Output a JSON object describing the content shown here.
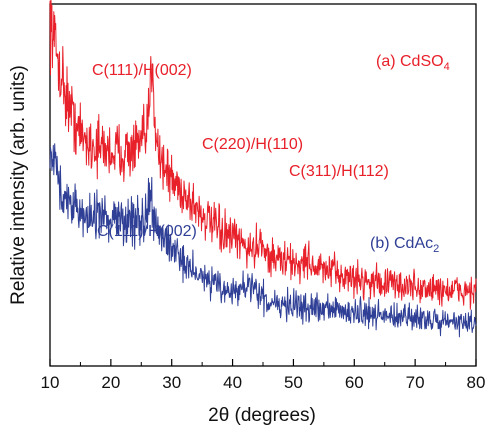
{
  "chart_data": {
    "type": "line",
    "title": "",
    "xlabel": "2θ (degrees)",
    "ylabel": "Relative intensity (arb. units)",
    "xlim": [
      10,
      80
    ],
    "yticks_labeled": false,
    "grid": false,
    "x_ticks": [
      "10",
      "20",
      "30",
      "40",
      "50",
      "60",
      "70",
      "80"
    ],
    "series": [
      {
        "name": "(a) CdSO4",
        "label_main": "(a) CdSO",
        "label_sub": "4",
        "color": "#e8202a",
        "x": [
          10,
          11,
          12,
          13,
          14,
          15,
          16,
          17,
          18,
          19,
          20,
          21,
          22,
          23,
          24,
          25,
          25.5,
          26,
          26.3,
          26.6,
          26.8,
          27.0,
          27.2,
          27.5,
          28,
          29,
          30,
          31,
          32,
          33,
          34,
          35,
          36,
          37,
          38,
          39,
          40,
          41,
          42,
          43,
          43.8,
          44.3,
          44.6,
          44.9,
          45.3,
          46,
          47,
          48,
          49,
          50,
          51,
          51.8,
          52.3,
          52.7,
          53.2,
          54,
          55,
          56,
          57,
          58,
          59,
          60,
          62,
          64,
          66,
          68,
          70,
          72,
          74,
          76,
          78,
          80
        ],
        "y": [
          100,
          90,
          82,
          75,
          70,
          66,
          64,
          63,
          62,
          62,
          61,
          61,
          61,
          61,
          62,
          63,
          64,
          67,
          73,
          83,
          88,
          82,
          72,
          66,
          60,
          56,
          53,
          51,
          49,
          47,
          45,
          43,
          41,
          39.5,
          38,
          37,
          36,
          35,
          34,
          33,
          33,
          35,
          38,
          35,
          32,
          31,
          30.5,
          30,
          29.5,
          29,
          28.5,
          29,
          31,
          29.5,
          28,
          27.5,
          27,
          26.5,
          26,
          25.5,
          25,
          24.5,
          24,
          23.5,
          23,
          22.5,
          22,
          21.5,
          21.5,
          21,
          21,
          21
        ]
      },
      {
        "name": "(b) CdAc2",
        "label_main": "(b) CdAc",
        "label_sub": "2",
        "color": "#2f3f96",
        "x": [
          10,
          11,
          12,
          13,
          14,
          15,
          16,
          17,
          18,
          19,
          20,
          21,
          22,
          23,
          24,
          25,
          25.5,
          26,
          26.3,
          26.6,
          26.8,
          27.0,
          27.3,
          27.8,
          28.5,
          29,
          30,
          31,
          32,
          33,
          34,
          35,
          36,
          37,
          38,
          39,
          40,
          41,
          42,
          43,
          44,
          45,
          46,
          47,
          48,
          49,
          50,
          52,
          54,
          56,
          58,
          60,
          62,
          64,
          66,
          68,
          70,
          72,
          74,
          76,
          78,
          80
        ],
        "y": [
          63,
          56,
          51,
          47,
          45,
          43,
          42,
          42,
          41.5,
          41.5,
          41,
          41,
          41,
          41,
          41,
          41,
          41.5,
          43,
          46,
          47.5,
          45.5,
          42,
          39,
          38,
          37,
          36,
          34,
          32,
          30,
          28,
          26.5,
          25,
          24,
          23,
          22,
          21,
          21,
          21.5,
          21.5,
          21,
          20,
          19,
          18.5,
          18,
          17.5,
          17,
          17,
          16.5,
          16,
          15.5,
          15,
          14.5,
          14,
          13.5,
          13.2,
          13,
          12.7,
          12.5,
          12.3,
          12,
          12,
          12
        ]
      }
    ],
    "annotations": [
      {
        "text": "C(111)/H(002)",
        "series": "(a) CdSO4"
      },
      {
        "text": "C(220)/H(110)",
        "series": "(a) CdSO4"
      },
      {
        "text": "C(311)/H(112)",
        "series": "(a) CdSO4"
      },
      {
        "text": "C(111)/H(002)",
        "series": "(b) CdAc2"
      }
    ]
  }
}
